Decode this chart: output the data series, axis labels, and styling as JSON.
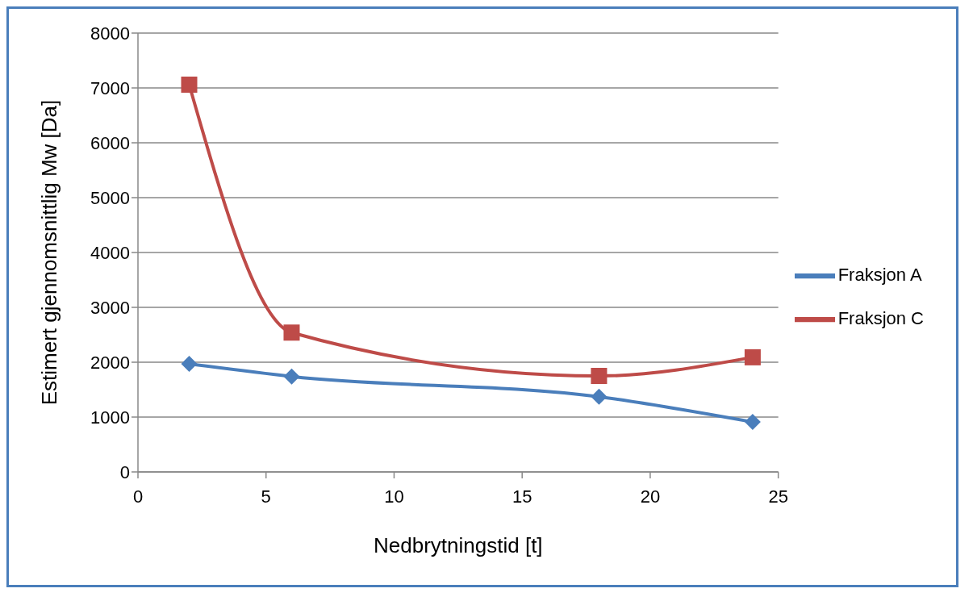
{
  "chart_data": {
    "type": "line",
    "xlabel": "Nedbrytningstid [t]",
    "ylabel": "Estimert gjennomsnittlig Mw [Da]",
    "x": [
      2,
      6,
      18,
      24
    ],
    "series": [
      {
        "name": "Fraksjon A",
        "color": "#4a7ebb",
        "marker": "diamond",
        "values": [
          1970,
          1740,
          1370,
          910
        ]
      },
      {
        "name": "Fraksjon C",
        "color": "#be4b48",
        "marker": "square",
        "values": [
          7060,
          2540,
          1750,
          2090
        ]
      }
    ],
    "xlim": [
      0,
      25
    ],
    "xticks": [
      0,
      5,
      10,
      15,
      20,
      25
    ],
    "ylim": [
      0,
      8000
    ],
    "yticks": [
      0,
      1000,
      2000,
      3000,
      4000,
      5000,
      6000,
      7000,
      8000
    ],
    "grid": "y",
    "legend": "right",
    "line_style": "solid"
  }
}
